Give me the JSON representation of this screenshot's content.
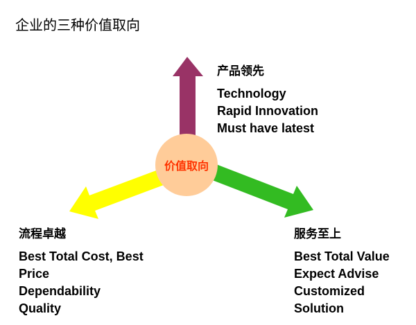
{
  "title": "企业的三种价值取向",
  "center": {
    "label": "价值取向",
    "color": "#ffcc99",
    "text_color": "#ff3300"
  },
  "branches": [
    {
      "heading": "产品领先",
      "lines": [
        "Technology",
        "Rapid Innovation",
        "Must have latest"
      ],
      "arrow_color": "#993366",
      "direction": "up"
    },
    {
      "heading": "流程卓越",
      "lines": [
        "Best Total Cost, Best",
        "Price",
        "Dependability",
        "Quality"
      ],
      "arrow_color": "#ffff00",
      "direction": "lower-left"
    },
    {
      "heading": "服务至上",
      "lines": [
        "Best Total Value",
        "Expect Advise",
        "Customized",
        "Solution"
      ],
      "arrow_color": "#33bb22",
      "direction": "lower-right"
    }
  ]
}
